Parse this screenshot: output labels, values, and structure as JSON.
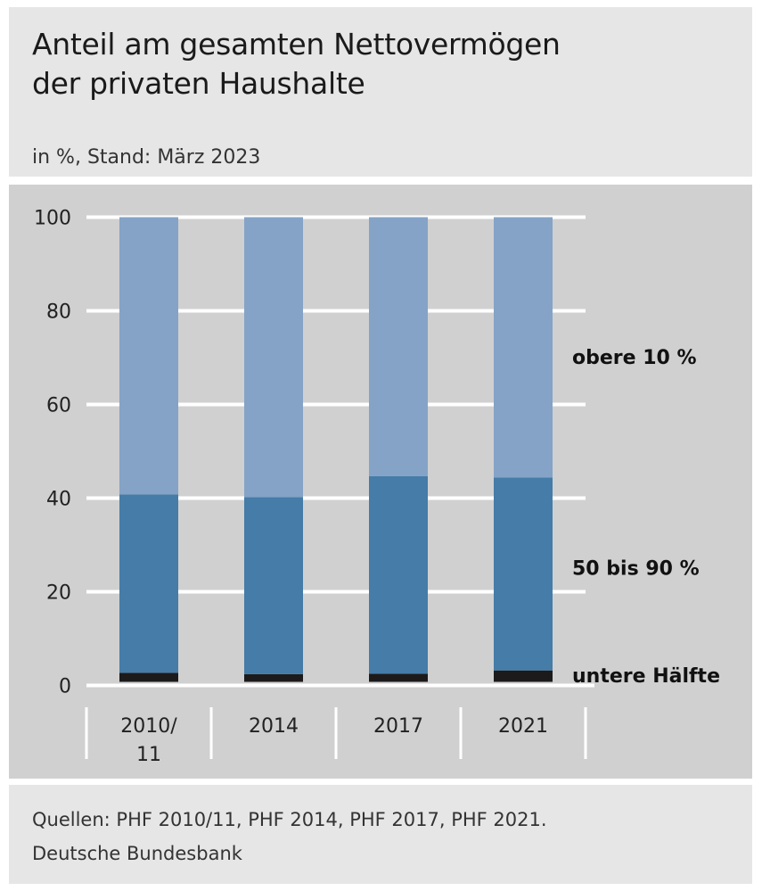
{
  "header": {
    "title_line1": "Anteil am gesamten Nettovermögen",
    "title_line2": "der privaten Haushalte",
    "subtitle": "in %, Stand: März 2023"
  },
  "footer": {
    "sources": "Quellen: PHF 2010/11, PHF 2014, PHF 2017, PHF 2021.",
    "publisher": "Deutsche Bundesbank"
  },
  "chart_data": {
    "type": "bar",
    "stacked": true,
    "categories": [
      "2010/11",
      "2014",
      "2017",
      "2021"
    ],
    "category_label_lines": [
      [
        "2010/",
        "11"
      ],
      [
        "2014"
      ],
      [
        "2017"
      ],
      [
        "2021"
      ]
    ],
    "series": [
      {
        "name": "untere Hälfte",
        "values": [
          2.7,
          2.4,
          2.5,
          3.2
        ],
        "color": "#1c1a1a"
      },
      {
        "name": "50 bis 90 %",
        "values": [
          38.1,
          37.8,
          42.2,
          41.2
        ],
        "color": "#457ca8"
      },
      {
        "name": "obere 10 %",
        "values": [
          59.2,
          59.8,
          55.3,
          55.6
        ],
        "color": "#84a3c6"
      }
    ],
    "ylim": [
      0,
      100
    ],
    "yticks": [
      0,
      20,
      40,
      60,
      80,
      100
    ],
    "grid": true,
    "legend": "right, inline labels"
  }
}
